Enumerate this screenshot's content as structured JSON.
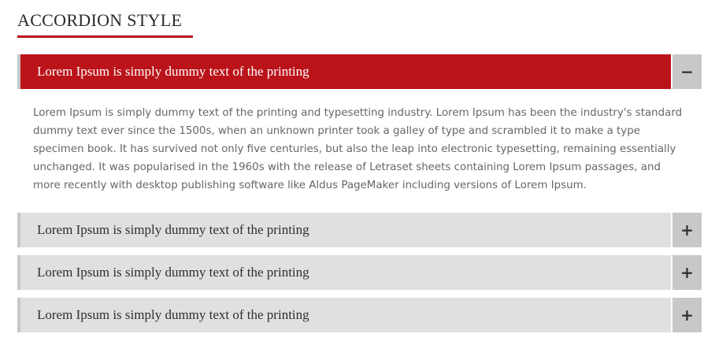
{
  "heading": "ACCORDION STYLE",
  "colors": {
    "accent": "#bb131a",
    "inactive_header": "#e0e0e0",
    "toggle_bg": "#c8c8c8"
  },
  "accordion": {
    "items": [
      {
        "title": "Lorem Ipsum is simply dummy text of the printing",
        "toggle": "−",
        "expanded": true,
        "body": "Lorem Ipsum is simply dummy text of the printing and typesetting industry. Lorem Ipsum has been the industry's standard dummy text ever since the 1500s, when an unknown printer took a galley of type and scrambled it to make a type specimen book. It has survived not only five centuries, but also the leap into electronic typesetting, remaining essentially unchanged. It was popularised in the 1960s with the release of Letraset sheets containing Lorem Ipsum passages, and more recently with desktop publishing software like Aldus PageMaker including versions of Lorem Ipsum."
      },
      {
        "title": "Lorem Ipsum is simply dummy text of the printing",
        "toggle": "+",
        "expanded": false
      },
      {
        "title": "Lorem Ipsum is simply dummy text of the printing",
        "toggle": "+",
        "expanded": false
      },
      {
        "title": "Lorem Ipsum is simply dummy text of the printing",
        "toggle": "+",
        "expanded": false
      }
    ]
  }
}
